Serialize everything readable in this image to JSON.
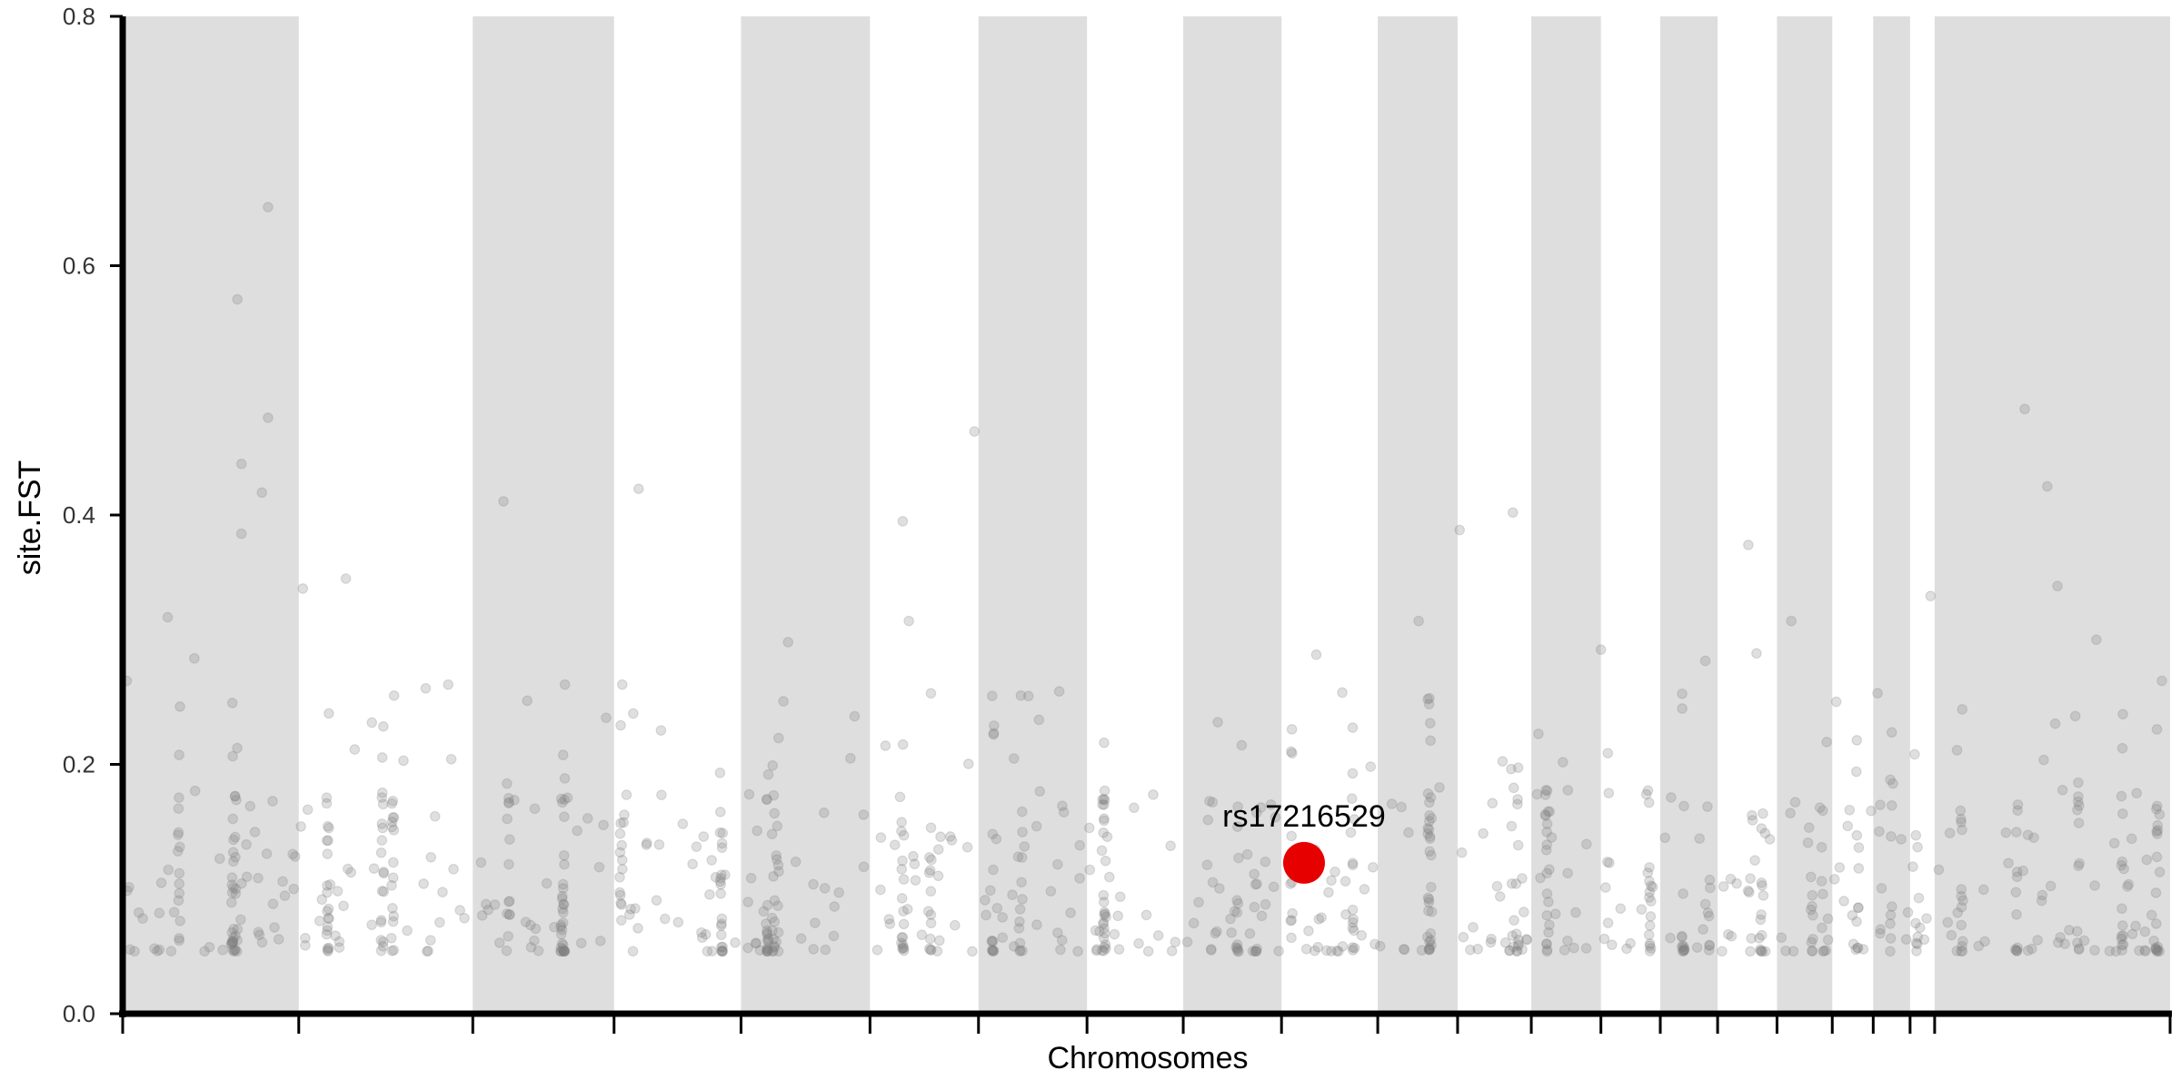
{
  "chart_data": {
    "type": "scatter",
    "title": "",
    "xlabel": "Chromosomes",
    "ylabel": "site.FST",
    "ylim": [
      0,
      0.8
    ],
    "y_ticks": [
      "0.0",
      "0.2",
      "0.4",
      "0.6",
      "0.8"
    ],
    "x_tick_labels_shown": false,
    "x_extent": [
      0,
      1000
    ],
    "chromosome_boundaries": [
      0,
      86,
      171,
      240,
      302,
      365,
      418,
      471,
      518,
      566,
      613,
      652,
      688,
      722,
      751,
      779,
      808,
      835,
      855,
      873,
      885,
      1000
    ],
    "shaded_chromosomes": [
      0,
      2,
      4,
      6,
      8,
      10,
      12,
      14,
      16,
      18,
      20
    ],
    "shade_color": "#dedede",
    "point_color": "#808080",
    "point_opacity": 0.25,
    "highlight_color": "#e60000",
    "highlight": {
      "label": "rs17216529",
      "x": 577,
      "y": 0.121
    },
    "outliers": [
      {
        "x": 56,
        "y": 0.573
      },
      {
        "x": 71,
        "y": 0.647
      },
      {
        "x": 71,
        "y": 0.478
      },
      {
        "x": 58,
        "y": 0.441
      },
      {
        "x": 68,
        "y": 0.418
      },
      {
        "x": 58,
        "y": 0.385
      },
      {
        "x": 22,
        "y": 0.318
      },
      {
        "x": 88,
        "y": 0.341
      },
      {
        "x": 109,
        "y": 0.349
      },
      {
        "x": 186,
        "y": 0.411
      },
      {
        "x": 252,
        "y": 0.421
      },
      {
        "x": 416,
        "y": 0.467
      },
      {
        "x": 381,
        "y": 0.395
      },
      {
        "x": 384,
        "y": 0.315
      },
      {
        "x": 653,
        "y": 0.388
      },
      {
        "x": 679,
        "y": 0.402
      },
      {
        "x": 794,
        "y": 0.376
      },
      {
        "x": 815,
        "y": 0.315
      },
      {
        "x": 883,
        "y": 0.335
      },
      {
        "x": 929,
        "y": 0.485
      },
      {
        "x": 940,
        "y": 0.423
      },
      {
        "x": 945,
        "y": 0.343
      },
      {
        "x": 964,
        "y": 0.3
      },
      {
        "x": 633,
        "y": 0.315
      },
      {
        "x": 722,
        "y": 0.292
      },
      {
        "x": 798,
        "y": 0.289
      },
      {
        "x": 583,
        "y": 0.288
      },
      {
        "x": 325,
        "y": 0.298
      },
      {
        "x": 35,
        "y": 0.285
      },
      {
        "x": 773,
        "y": 0.283
      },
      {
        "x": 2,
        "y": 0.267
      },
      {
        "x": 159,
        "y": 0.264
      },
      {
        "x": 216,
        "y": 0.264
      },
      {
        "x": 244,
        "y": 0.264
      },
      {
        "x": 148,
        "y": 0.261
      },
      {
        "x": 996,
        "y": 0.267
      }
    ]
  }
}
